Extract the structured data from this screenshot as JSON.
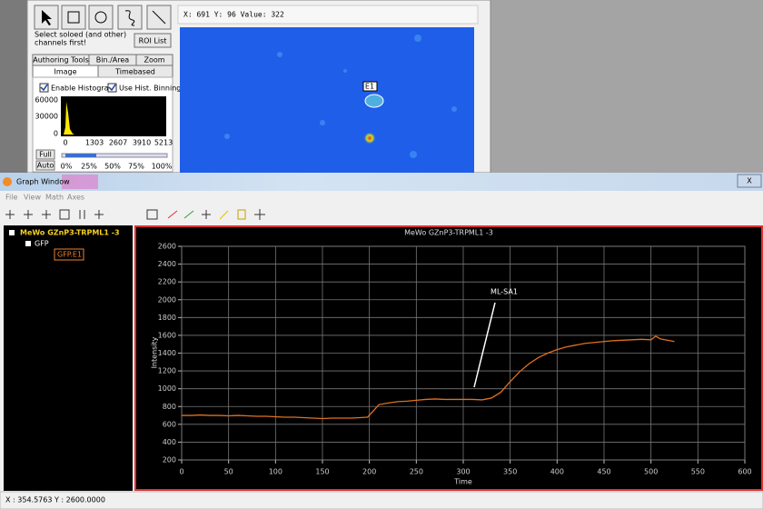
{
  "ui": {
    "status_top": "X: 691 Y: 96 Value: 322",
    "hint": [
      "Select soloed (and other)",
      "channels first!"
    ],
    "roi_button": "ROI List",
    "tabs_row1": [
      "Authoring Tools",
      "Bin./Area",
      "Zoom"
    ],
    "tabs_row2": [
      "Image",
      "Timebased"
    ],
    "checkboxes": [
      "Enable Histogram",
      "Use Hist. Binning"
    ],
    "hist_yticks": [
      60000,
      30000,
      0
    ],
    "hist_xticks": [
      0,
      1303,
      2607,
      3910,
      5213
    ],
    "full_button": "Full",
    "auto_button": "Auto",
    "slider_labels": [
      "0%",
      "25%",
      "50%",
      "75%",
      "100%"
    ],
    "roi_label": "E1",
    "window_title": "Graph Window",
    "close": "X",
    "menu": [
      "File",
      "View",
      "Math",
      "Axes"
    ],
    "tree": {
      "root": "MeWo GZnP3-TRPML1 -3",
      "channel": "GFP",
      "roi": "GFP.E1"
    },
    "status_bottom": "X : 354.5763 Y : 2600.0000"
  },
  "chart_data": {
    "type": "line",
    "title": "MeWo GZnP3-TRPML1 -3",
    "x_label": "Time",
    "y_label": "Intensity",
    "annotation": "ML-SA1",
    "color": "#e0701e",
    "grid": true,
    "x": [
      0,
      10,
      20,
      30,
      40,
      50,
      60,
      70,
      80,
      90,
      100,
      110,
      120,
      130,
      140,
      150,
      160,
      170,
      180,
      190,
      198,
      205,
      210,
      220,
      230,
      240,
      250,
      260,
      270,
      280,
      290,
      300,
      310,
      320,
      330,
      340,
      350,
      360,
      370,
      380,
      390,
      400,
      410,
      420,
      430,
      440,
      450,
      460,
      470,
      480,
      490,
      500,
      505,
      510,
      520,
      525
    ],
    "values": [
      700,
      700,
      705,
      700,
      700,
      695,
      700,
      695,
      690,
      690,
      685,
      680,
      680,
      675,
      670,
      665,
      670,
      670,
      670,
      675,
      680,
      760,
      820,
      840,
      855,
      860,
      870,
      880,
      885,
      880,
      880,
      880,
      880,
      875,
      895,
      960,
      1080,
      1190,
      1280,
      1350,
      1400,
      1440,
      1470,
      1490,
      1510,
      1520,
      1530,
      1540,
      1545,
      1550,
      1555,
      1550,
      1590,
      1560,
      1540,
      1530
    ],
    "xlim": [
      0,
      600
    ],
    "ylim": [
      200,
      2600
    ],
    "xticks": [
      0,
      50,
      100,
      150,
      200,
      250,
      300,
      350,
      400,
      450,
      500,
      550,
      600
    ],
    "yticks": [
      200,
      400,
      600,
      800,
      1000,
      1200,
      1400,
      1600,
      1800,
      2000,
      2200,
      2400,
      2600
    ]
  }
}
